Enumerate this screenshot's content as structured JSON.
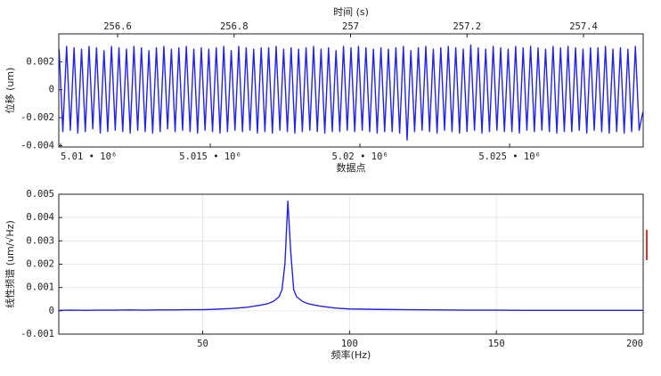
{
  "chart_data": [
    {
      "type": "line",
      "xlabel": "数据点",
      "ylabel": "位移 (um)",
      "x2label": "时间 (s)",
      "color": "#2222ee",
      "grid": false,
      "xlim": [
        5009940,
        5029460
      ],
      "xticks": [
        {
          "value": 5010000,
          "label": "5.01 • 10⁶"
        },
        {
          "value": 5015000,
          "label": "5.015 • 10⁶"
        },
        {
          "value": 5020000,
          "label": "5.02 • 10⁶"
        },
        {
          "value": 5025000,
          "label": "5.025 • 10⁶"
        }
      ],
      "x2lim": [
        256.499,
        257.5025
      ],
      "x2ticks": [
        256.6,
        256.8,
        257,
        257.2,
        257.4
      ],
      "ylim": [
        -0.0041,
        0.004
      ],
      "yticks": [
        0.002,
        0,
        -0.002,
        -0.004
      ],
      "x": [
        5009950,
        5010075,
        5010200,
        5010325,
        5010450,
        5010575,
        5010700,
        5010825,
        5010950,
        5011075,
        5011200,
        5011325,
        5011450,
        5011575,
        5011700,
        5011825,
        5011950,
        5012075,
        5012200,
        5012325,
        5012450,
        5012575,
        5012700,
        5012825,
        5012950,
        5013075,
        5013200,
        5013325,
        5013450,
        5013575,
        5013700,
        5013825,
        5013950,
        5014075,
        5014200,
        5014325,
        5014450,
        5014575,
        5014700,
        5014825,
        5014950,
        5015075,
        5015200,
        5015325,
        5015450,
        5015575,
        5015700,
        5015825,
        5015950,
        5016075,
        5016200,
        5016325,
        5016450,
        5016575,
        5016700,
        5016825,
        5016950,
        5017075,
        5017200,
        5017325,
        5017450,
        5017575,
        5017700,
        5017825,
        5017950,
        5018075,
        5018200,
        5018325,
        5018450,
        5018575,
        5018700,
        5018825,
        5018950,
        5019075,
        5019200,
        5019325,
        5019450,
        5019575,
        5019700,
        5019825,
        5019950,
        5020075,
        5020200,
        5020325,
        5020450,
        5020575,
        5020700,
        5020825,
        5020950,
        5021075,
        5021200,
        5021325,
        5021450,
        5021575,
        5021700,
        5021825,
        5021950,
        5022075,
        5022200,
        5022325,
        5022450,
        5022575,
        5022700,
        5022825,
        5022950,
        5023075,
        5023200,
        5023325,
        5023450,
        5023575,
        5023700,
        5023825,
        5023950,
        5024075,
        5024200,
        5024325,
        5024450,
        5024575,
        5024700,
        5024825,
        5024950,
        5025075,
        5025200,
        5025325,
        5025450,
        5025575,
        5025700,
        5025825,
        5025950,
        5026075,
        5026200,
        5026325,
        5026450,
        5026575,
        5026700,
        5026825,
        5026950,
        5027075,
        5027200,
        5027325,
        5027450,
        5027575,
        5027700,
        5027825,
        5027950,
        5028075,
        5028200,
        5028325,
        5028450,
        5028575,
        5028700,
        5028825,
        5028950,
        5029075,
        5029200,
        5029325,
        5029450
      ],
      "values": [
        0.0029,
        -0.003,
        0.0031,
        -0.0029,
        0.003,
        -0.0031,
        0.0029,
        -0.003,
        0.0031,
        -0.0028,
        0.003,
        -0.0031,
        0.0028,
        -0.003,
        0.0031,
        -0.0029,
        0.003,
        -0.003,
        0.0029,
        -0.0031,
        0.0031,
        -0.0029,
        0.003,
        -0.003,
        0.0028,
        -0.0031,
        0.003,
        -0.003,
        0.0031,
        -0.0028,
        0.0029,
        -0.003,
        0.003,
        -0.0029,
        0.0031,
        -0.003,
        0.0029,
        -0.0031,
        0.003,
        -0.0029,
        0.0029,
        -0.003,
        0.003,
        -0.0031,
        0.0031,
        -0.003,
        0.0028,
        -0.0029,
        0.0031,
        -0.003,
        0.003,
        -0.0029,
        0.0029,
        -0.0031,
        0.003,
        -0.003,
        0.003,
        -0.0031,
        0.0031,
        -0.0029,
        0.0029,
        -0.003,
        0.003,
        -0.0031,
        0.0029,
        -0.003,
        0.003,
        -0.0029,
        0.0031,
        -0.003,
        0.0029,
        -0.0031,
        0.003,
        -0.003,
        0.0028,
        -0.003,
        0.0031,
        -0.0029,
        0.003,
        -0.003,
        0.0031,
        -0.0029,
        0.003,
        -0.003,
        0.0029,
        -0.0031,
        0.003,
        -0.003,
        0.0029,
        -0.003,
        0.003,
        -0.0031,
        0.0031,
        -0.0036,
        0.0028,
        -0.003,
        0.003,
        -0.0029,
        0.0031,
        -0.003,
        0.0029,
        -0.0031,
        0.003,
        -0.0029,
        0.0031,
        -0.003,
        0.003,
        -0.0031,
        0.0029,
        -0.003,
        0.0032,
        -0.0029,
        0.003,
        -0.0031,
        0.0029,
        -0.003,
        0.0031,
        -0.0029,
        0.003,
        -0.003,
        0.0029,
        -0.003,
        0.0031,
        -0.0031,
        0.003,
        -0.0029,
        0.0031,
        -0.003,
        0.003,
        -0.0029,
        0.0029,
        -0.003,
        0.0031,
        -0.0031,
        0.003,
        -0.003,
        0.0031,
        -0.003,
        0.003,
        -0.0029,
        0.0029,
        -0.0031,
        0.003,
        -0.0029,
        0.003,
        -0.003,
        0.0031,
        -0.0031,
        0.0029,
        -0.003,
        0.003,
        -0.0031,
        0.0029,
        -0.003,
        0.0031,
        -0.0029,
        -0.0016
      ]
    },
    {
      "type": "line",
      "xlabel": "频率(Hz)",
      "ylabel": "线性频谱 (um/√Hz)",
      "color": "#2222ee",
      "grid": true,
      "xlim": [
        1,
        200
      ],
      "xticks": [
        50,
        100,
        150,
        200
      ],
      "ylim": [
        -0.001,
        0.005
      ],
      "yticks": [
        0.005,
        0.004,
        0.003,
        0.002,
        0.001,
        0,
        -0.001
      ],
      "x": [
        1,
        5,
        10,
        15,
        20,
        25,
        30,
        35,
        40,
        45,
        50,
        55,
        60,
        65,
        70,
        72,
        74,
        76,
        77,
        78,
        79,
        80,
        81,
        82,
        84,
        86,
        88,
        90,
        95,
        100,
        110,
        120,
        130,
        140,
        150,
        160,
        170,
        180,
        190,
        200
      ],
      "values": [
        2e-05,
        3e-05,
        2e-05,
        3e-05,
        3e-05,
        4e-05,
        3e-05,
        4e-05,
        4e-05,
        5e-05,
        5e-05,
        7e-05,
        0.0001,
        0.00015,
        0.00025,
        0.0003,
        0.0004,
        0.0006,
        0.0009,
        0.002,
        0.0047,
        0.0025,
        0.0009,
        0.0006,
        0.0004,
        0.0003,
        0.00025,
        0.0002,
        0.00012,
        8e-05,
        6e-05,
        5e-05,
        4e-05,
        3e-05,
        3e-05,
        2e-05,
        2e-05,
        2e-05,
        2e-05,
        2e-05
      ]
    }
  ]
}
